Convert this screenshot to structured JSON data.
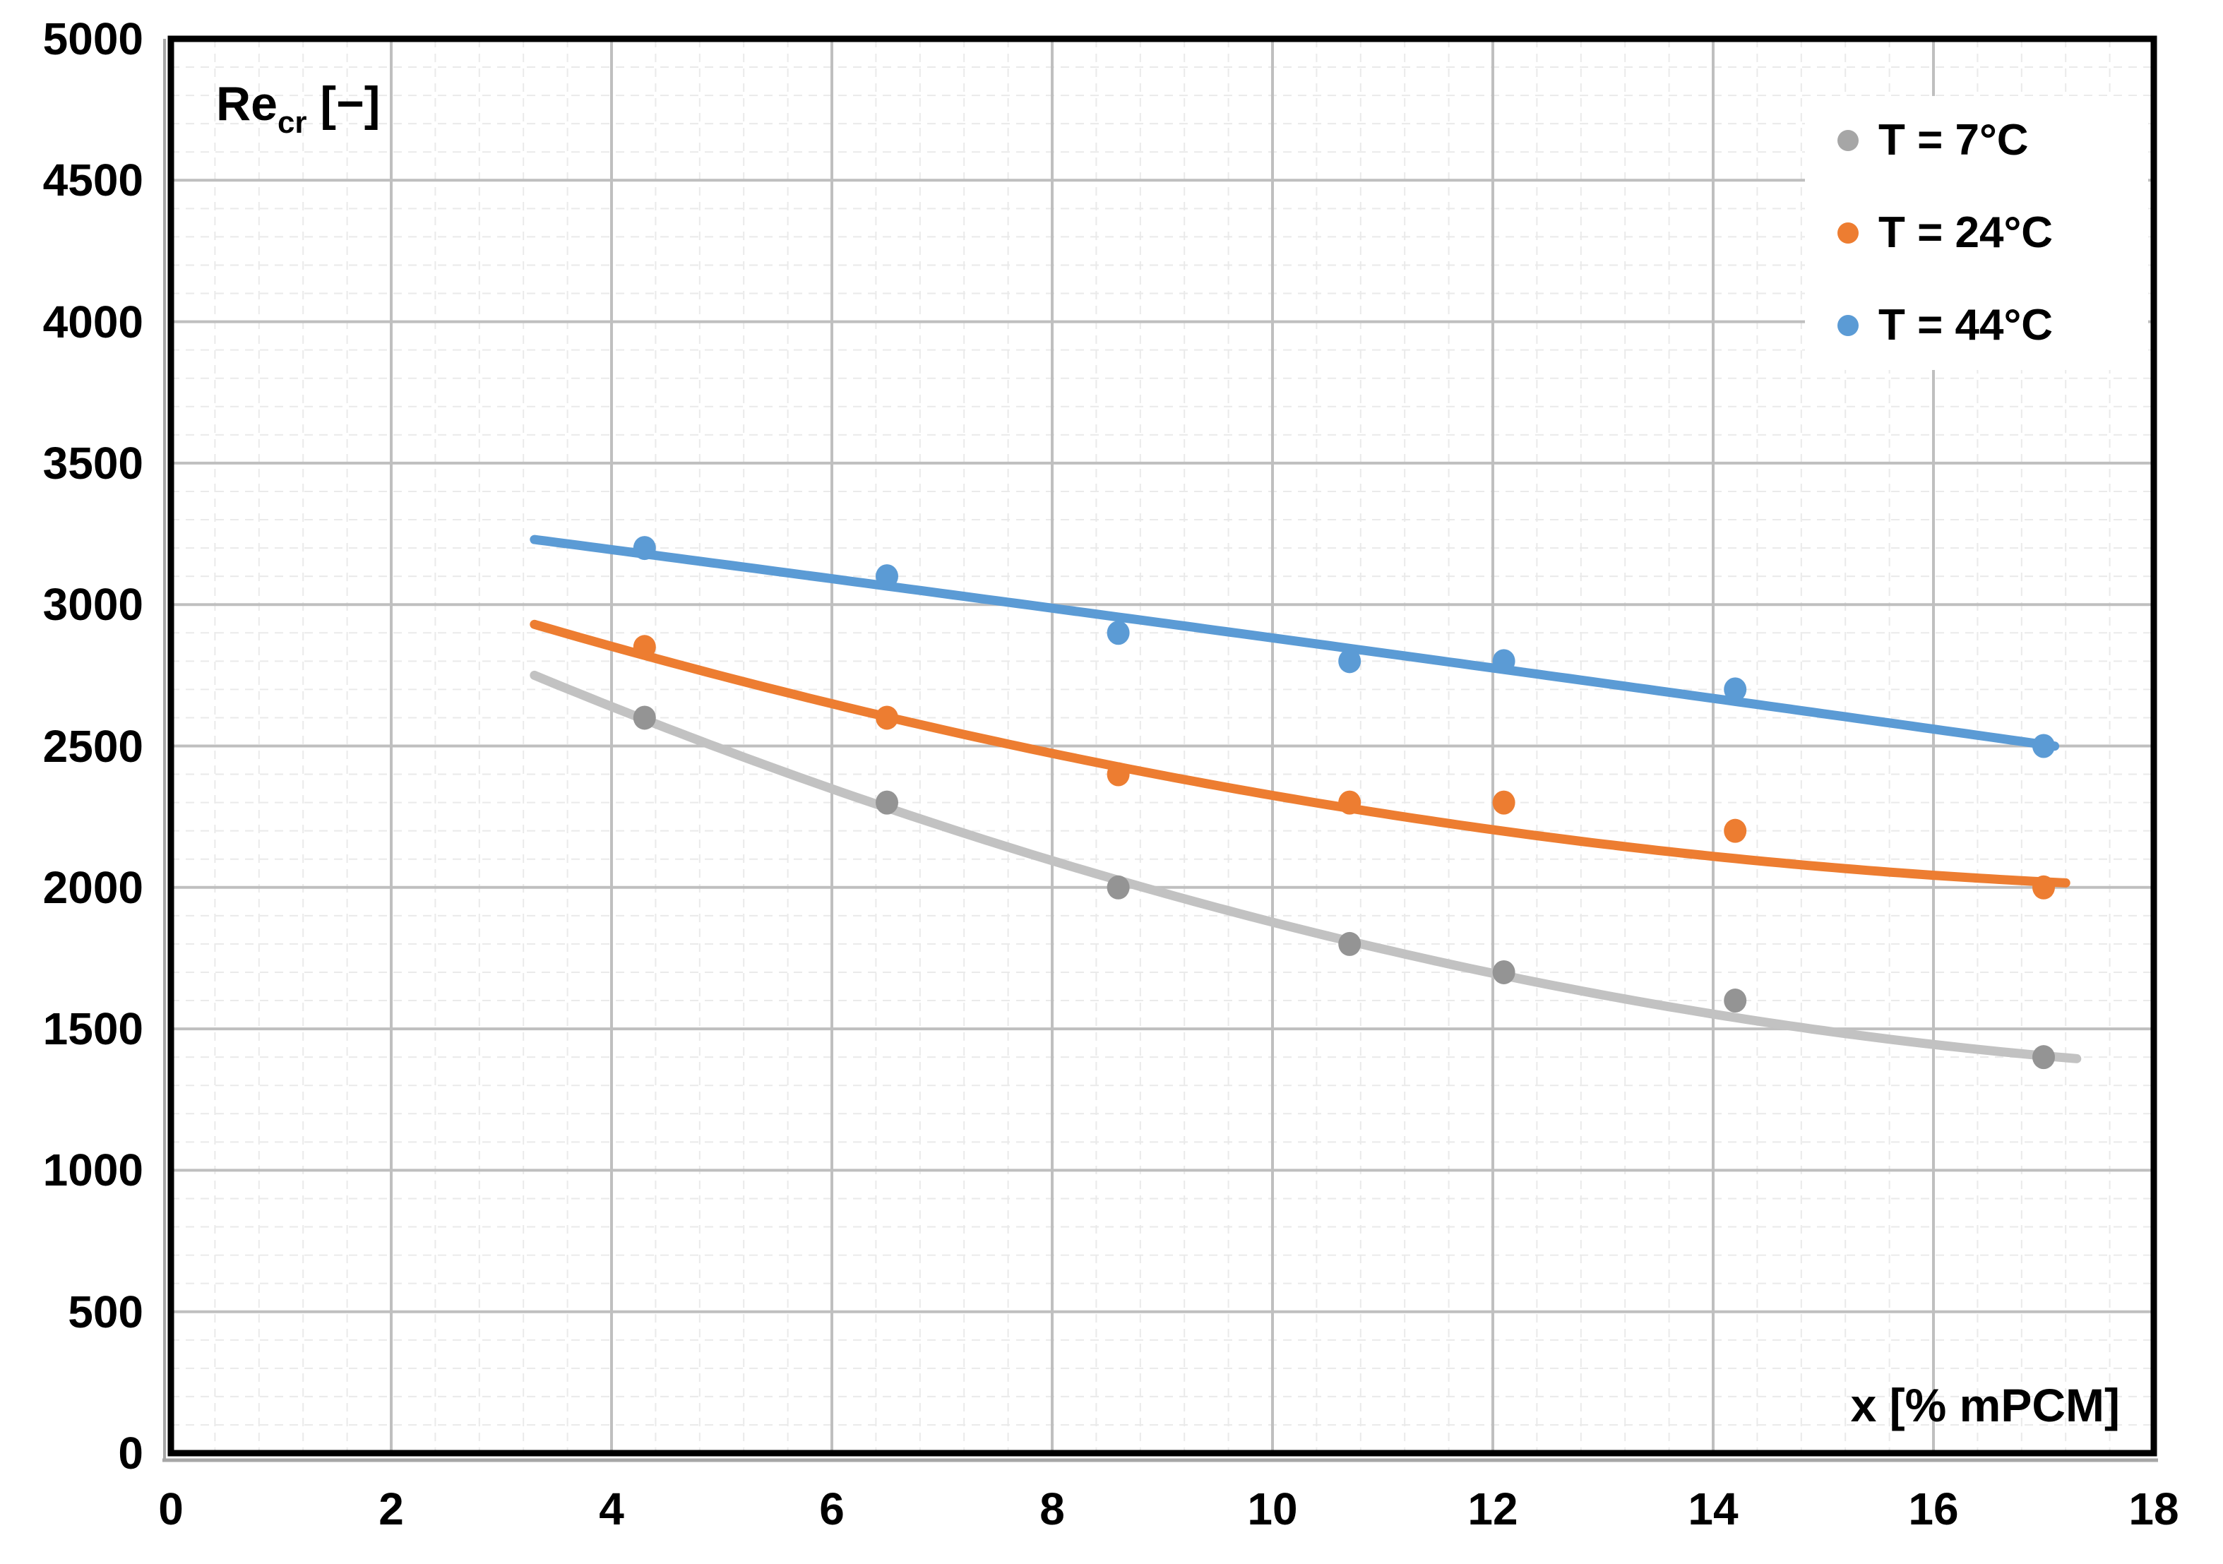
{
  "chart_data": {
    "type": "scatter",
    "title": "",
    "y_title": {
      "base": "Re",
      "sub": "cr",
      "unit": " [−]"
    },
    "x_title": "x [% mPCM]",
    "x_axis": {
      "min": 0,
      "max": 18,
      "major_step": 2,
      "minor_step": 0.4,
      "tick_labels": [
        "0",
        "2",
        "4",
        "6",
        "8",
        "10",
        "12",
        "14",
        "16",
        "18"
      ]
    },
    "y_axis": {
      "min": 0,
      "max": 5000,
      "major_step": 500,
      "minor_step": 100,
      "tick_labels": [
        "0",
        "500",
        "1000",
        "1500",
        "2000",
        "2500",
        "3000",
        "3500",
        "4000",
        "4500",
        "5000"
      ]
    },
    "grid": {
      "major_color": "#BFBFBF",
      "minor_color": "#EAEAEA",
      "border_color": "#000000",
      "shadow_color": "#A6A6A6"
    },
    "legend": {
      "position": "top-right",
      "entries": [
        "T = 7°C",
        "T = 24°C",
        "T = 44°C"
      ]
    },
    "series": [
      {
        "name": "T = 7°C",
        "legend_color": "#A6A6A6",
        "marker_color": "#949494",
        "line_color": "#C2C2C2",
        "points": [
          [
            4.3,
            2600
          ],
          [
            6.5,
            2300
          ],
          [
            8.6,
            2000
          ],
          [
            10.7,
            1800
          ],
          [
            12.1,
            1700
          ],
          [
            14.2,
            1600
          ],
          [
            17,
            1400
          ]
        ],
        "trend": {
          "a": 3330.7,
          "b": -191.15,
          "c": 4.58,
          "x_start": 3.3,
          "x_end": 17.3
        }
      },
      {
        "name": "T = 24°C",
        "legend_color": "#ED7D31",
        "marker_color": "#ED7D31",
        "line_color": "#ED7D31",
        "points": [
          [
            4.3,
            2850
          ],
          [
            6.5,
            2600
          ],
          [
            8.6,
            2400
          ],
          [
            10.7,
            2300
          ],
          [
            12.1,
            2300
          ],
          [
            14.2,
            2200
          ],
          [
            17,
            2000
          ]
        ],
        "trend": {
          "a": 3339.7,
          "b": -135.44,
          "c": 3.4,
          "x_start": 3.3,
          "x_end": 17.2
        }
      },
      {
        "name": "T = 44°C",
        "legend_color": "#5B9BD5",
        "marker_color": "#5B9BD5",
        "line_color": "#5B9BD5",
        "points": [
          [
            4.3,
            3200
          ],
          [
            6.5,
            3100
          ],
          [
            8.6,
            2900
          ],
          [
            10.7,
            2800
          ],
          [
            12.1,
            2800
          ],
          [
            14.2,
            2700
          ],
          [
            17,
            2500
          ]
        ],
        "trend": {
          "a": 3396.7,
          "b": -50.05,
          "c": -0.1413,
          "x_start": 3.3,
          "x_end": 17.15
        }
      }
    ]
  }
}
